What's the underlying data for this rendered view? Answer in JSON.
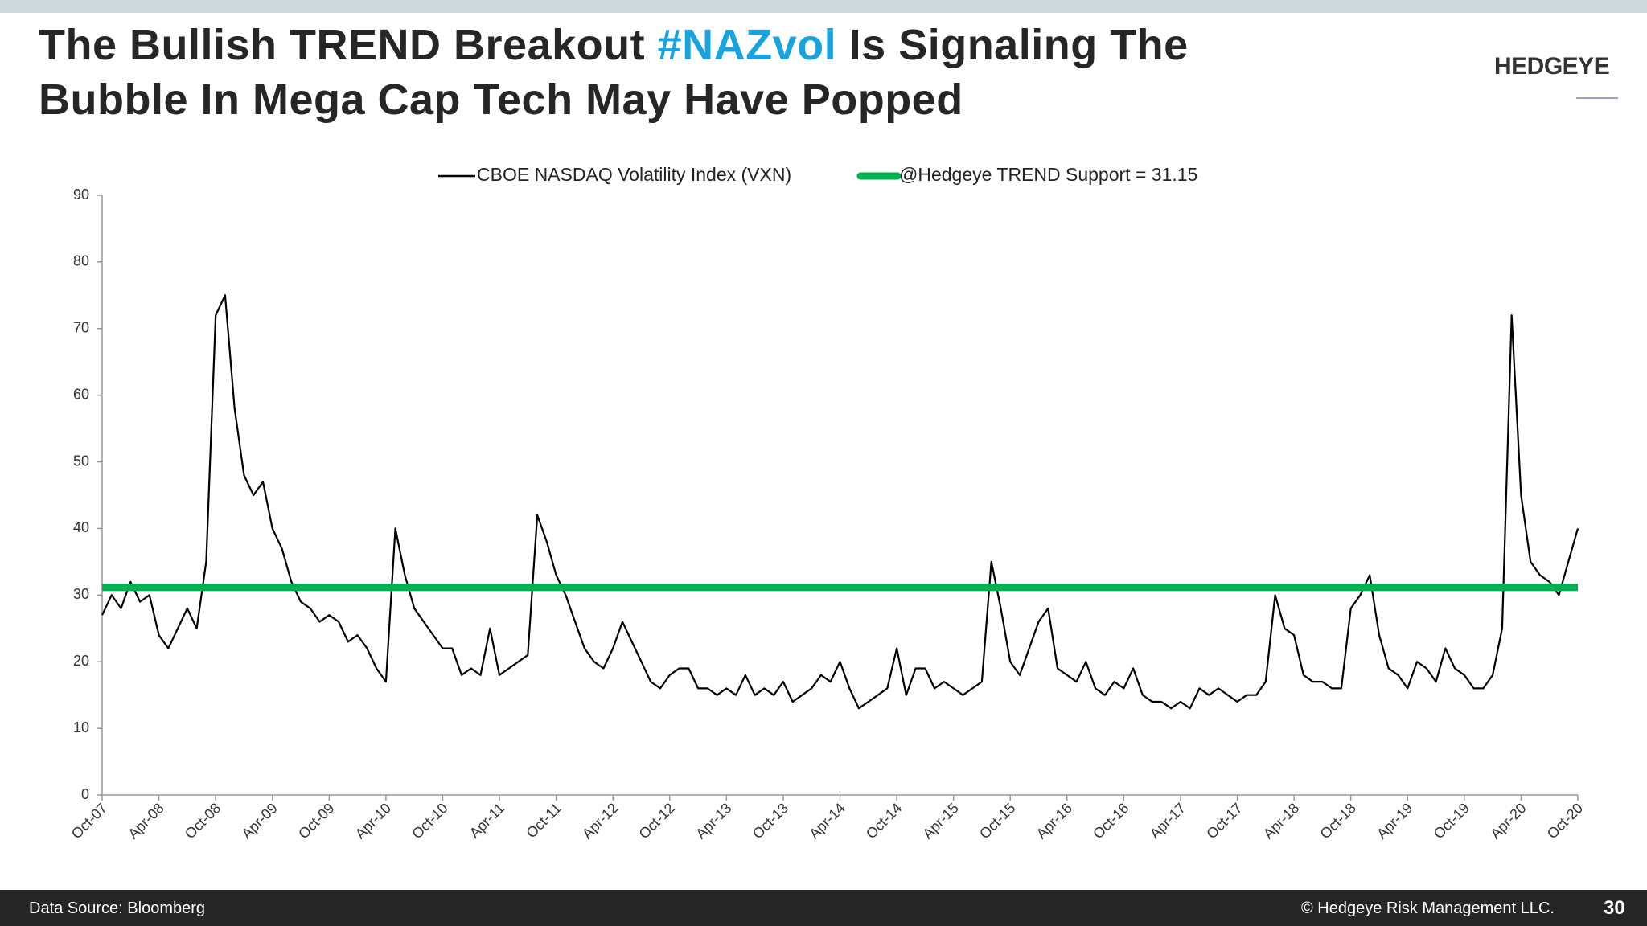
{
  "header": {
    "title": [
      "The Bullish TREND Breakout",
      "#NAZvol",
      "Is Signaling The",
      "Bubble In Mega Cap Tech May Have Popped"
    ],
    "logo": "HEDGEYE"
  },
  "footer": {
    "source": "Data Source: Bloomberg",
    "copyright": "© Hedgeye Risk Management LLC.",
    "page": "30"
  },
  "chart_data": {
    "type": "line",
    "x": [
      "Oct-07",
      "Nov-07",
      "Dec-07",
      "Jan-08",
      "Feb-08",
      "Mar-08",
      "Apr-08",
      "May-08",
      "Jun-08",
      "Jul-08",
      "Aug-08",
      "Sep-08",
      "Oct-08",
      "Nov-08",
      "Dec-08",
      "Jan-09",
      "Feb-09",
      "Mar-09",
      "Apr-09",
      "May-09",
      "Jun-09",
      "Jul-09",
      "Aug-09",
      "Sep-09",
      "Oct-09",
      "Nov-09",
      "Dec-09",
      "Jan-10",
      "Feb-10",
      "Mar-10",
      "Apr-10",
      "May-10",
      "Jun-10",
      "Jul-10",
      "Aug-10",
      "Sep-10",
      "Oct-10",
      "Nov-10",
      "Dec-10",
      "Jan-11",
      "Feb-11",
      "Mar-11",
      "Apr-11",
      "May-11",
      "Jun-11",
      "Jul-11",
      "Aug-11",
      "Sep-11",
      "Oct-11",
      "Nov-11",
      "Dec-11",
      "Jan-12",
      "Feb-12",
      "Mar-12",
      "Apr-12",
      "May-12",
      "Jun-12",
      "Jul-12",
      "Aug-12",
      "Sep-12",
      "Oct-12",
      "Nov-12",
      "Dec-12",
      "Jan-13",
      "Feb-13",
      "Mar-13",
      "Apr-13",
      "May-13",
      "Jun-13",
      "Jul-13",
      "Aug-13",
      "Sep-13",
      "Oct-13",
      "Nov-13",
      "Dec-13",
      "Jan-14",
      "Feb-14",
      "Mar-14",
      "Apr-14",
      "May-14",
      "Jun-14",
      "Jul-14",
      "Aug-14",
      "Sep-14",
      "Oct-14",
      "Nov-14",
      "Dec-14",
      "Jan-15",
      "Feb-15",
      "Mar-15",
      "Apr-15",
      "May-15",
      "Jun-15",
      "Jul-15",
      "Aug-15",
      "Sep-15",
      "Oct-15",
      "Nov-15",
      "Dec-15",
      "Jan-16",
      "Feb-16",
      "Mar-16",
      "Apr-16",
      "May-16",
      "Jun-16",
      "Jul-16",
      "Aug-16",
      "Sep-16",
      "Oct-16",
      "Nov-16",
      "Dec-16",
      "Jan-17",
      "Feb-17",
      "Mar-17",
      "Apr-17",
      "May-17",
      "Jun-17",
      "Jul-17",
      "Aug-17",
      "Sep-17",
      "Oct-17",
      "Nov-17",
      "Dec-17",
      "Jan-18",
      "Feb-18",
      "Mar-18",
      "Apr-18",
      "May-18",
      "Jun-18",
      "Jul-18",
      "Aug-18",
      "Sep-18",
      "Oct-18",
      "Nov-18",
      "Dec-18",
      "Jan-19",
      "Feb-19",
      "Mar-19",
      "Apr-19",
      "May-19",
      "Jun-19",
      "Jul-19",
      "Aug-19",
      "Sep-19",
      "Oct-19",
      "Nov-19",
      "Dec-19",
      "Jan-20",
      "Feb-20",
      "Mar-20",
      "Apr-20",
      "May-20",
      "Jun-20",
      "Jul-20",
      "Aug-20",
      "Sep-20",
      "Oct-20"
    ],
    "series": [
      {
        "name": "CBOE NASDAQ Volatility Index (VXN)",
        "color": "#000000",
        "values": [
          27,
          30,
          28,
          32,
          29,
          30,
          24,
          22,
          25,
          28,
          25,
          35,
          72,
          75,
          58,
          48,
          45,
          47,
          40,
          37,
          32,
          29,
          28,
          26,
          27,
          26,
          23,
          24,
          22,
          19,
          17,
          40,
          33,
          28,
          26,
          24,
          22,
          22,
          18,
          19,
          18,
          25,
          18,
          19,
          20,
          21,
          42,
          38,
          33,
          30,
          26,
          22,
          20,
          19,
          22,
          26,
          23,
          20,
          17,
          16,
          18,
          19,
          19,
          16,
          16,
          15,
          16,
          15,
          18,
          15,
          16,
          15,
          17,
          14,
          15,
          16,
          18,
          17,
          20,
          16,
          13,
          14,
          15,
          16,
          22,
          15,
          19,
          19,
          16,
          17,
          16,
          15,
          16,
          17,
          35,
          28,
          20,
          18,
          22,
          26,
          28,
          19,
          18,
          17,
          20,
          16,
          15,
          17,
          16,
          19,
          15,
          14,
          14,
          13,
          14,
          13,
          16,
          15,
          16,
          15,
          14,
          15,
          15,
          17,
          30,
          25,
          24,
          18,
          17,
          17,
          16,
          16,
          28,
          30,
          33,
          24,
          19,
          18,
          16,
          20,
          19,
          17,
          22,
          19,
          18,
          16,
          16,
          18,
          25,
          72,
          45,
          35,
          33,
          32,
          30,
          35,
          40
        ]
      },
      {
        "name": "@Hedgeye TREND Support = 31.15",
        "color": "#00b050",
        "value": 31.15
      }
    ],
    "xticks": [
      "Oct-07",
      "Apr-08",
      "Oct-08",
      "Apr-09",
      "Oct-09",
      "Apr-10",
      "Oct-10",
      "Apr-11",
      "Oct-11",
      "Apr-12",
      "Oct-12",
      "Apr-13",
      "Oct-13",
      "Apr-14",
      "Oct-14",
      "Apr-15",
      "Oct-15",
      "Apr-16",
      "Oct-16",
      "Apr-17",
      "Oct-17",
      "Apr-18",
      "Oct-18",
      "Apr-19",
      "Oct-19",
      "Apr-20",
      "Oct-20"
    ],
    "ylim": [
      0,
      90
    ],
    "yticks": [
      0,
      10,
      20,
      30,
      40,
      50,
      60,
      70,
      80,
      90
    ],
    "grid": false
  }
}
